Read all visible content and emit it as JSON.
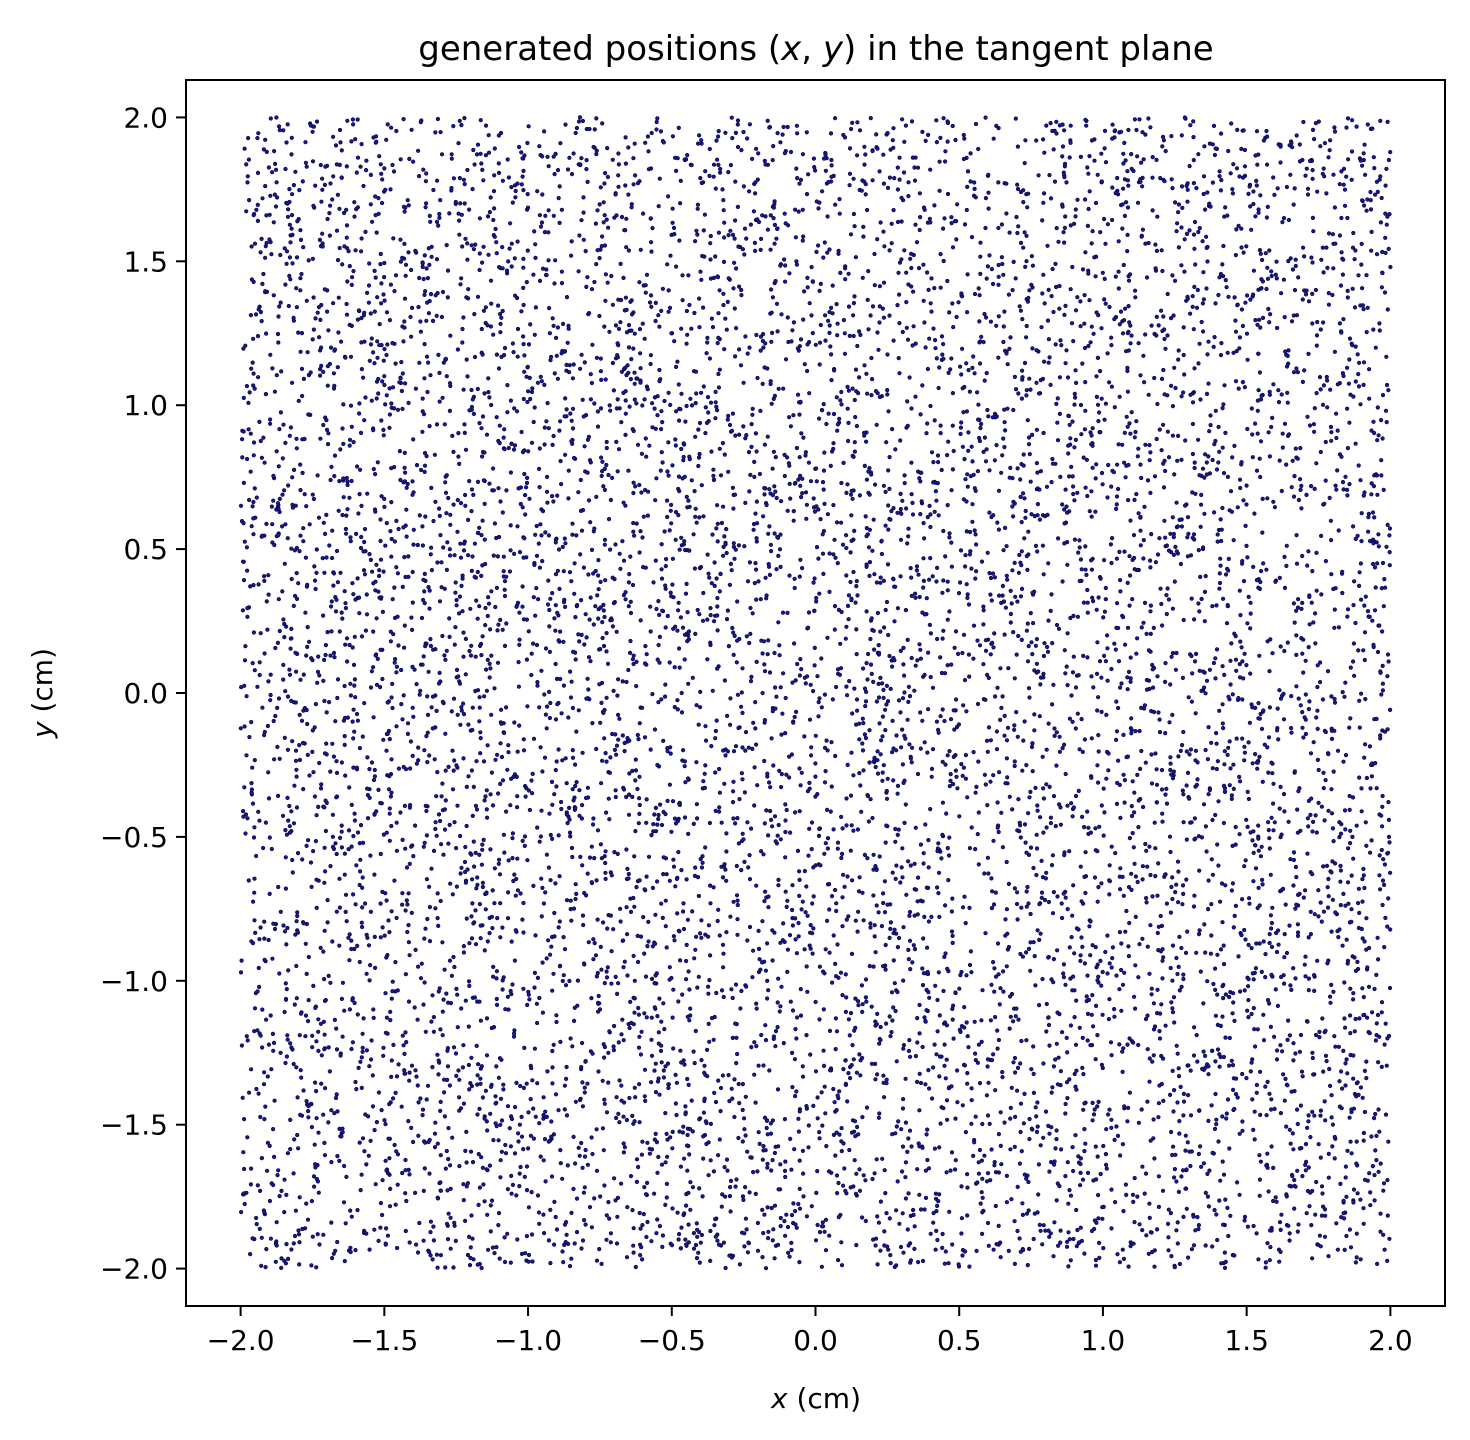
{
  "chart_data": {
    "type": "scatter",
    "title_parts": [
      "generated positions (",
      "x",
      ", ",
      "y",
      ") in the tangent plane"
    ],
    "xlabel_parts": [
      "x",
      " (cm)"
    ],
    "ylabel_parts": [
      "y",
      " (cm)"
    ],
    "xlim": [
      -2.19,
      2.19
    ],
    "ylim": [
      -2.13,
      2.13
    ],
    "xticks": [
      -2.0,
      -1.5,
      -1.0,
      -0.5,
      0.0,
      0.5,
      1.0,
      1.5,
      2.0
    ],
    "yticks": [
      -2.0,
      -1.5,
      -1.0,
      -0.5,
      0.0,
      0.5,
      1.0,
      1.5,
      2.0
    ],
    "xtick_labels": [
      "−2.0",
      "−1.5",
      "−1.0",
      "−0.5",
      "0.0",
      "0.5",
      "1.0",
      "1.5",
      "2.0"
    ],
    "ytick_labels": [
      "−2.0",
      "−1.5",
      "−1.0",
      "−0.5",
      "0.0",
      "0.5",
      "1.0",
      "1.5",
      "2.0"
    ],
    "grid": false,
    "point_color": "#1a1a80",
    "point_edge_color": "#000050",
    "series": [
      {
        "distribution": "uniform",
        "count": 10000,
        "x_range": [
          -2.0,
          2.0
        ],
        "y_range": [
          -2.0,
          2.0
        ]
      }
    ]
  }
}
